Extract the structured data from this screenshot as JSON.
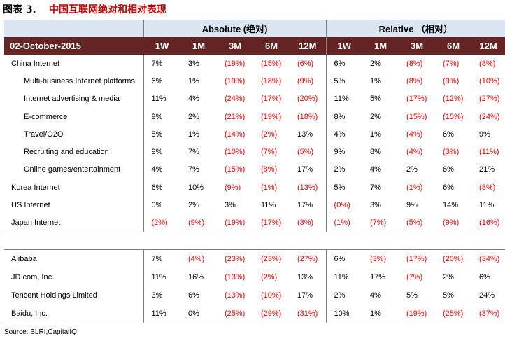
{
  "title": {
    "number": "图表 3.",
    "text": "中国互联网绝对和相对表现"
  },
  "header": {
    "absolute": "Absolute (绝对)",
    "relative": "Relative （相对）",
    "date": "02-October-2015",
    "periods": [
      "1W",
      "1M",
      "3M",
      "6M",
      "12M",
      "1W",
      "1M",
      "3M",
      "6M",
      "12M"
    ]
  },
  "rows": [
    {
      "label": "China Internet",
      "sub": false,
      "cells": [
        "7%",
        "3%",
        "(19%)",
        "(15%)",
        "(6%)",
        "6%",
        "2%",
        "(8%)",
        "(7%)",
        "(8%)"
      ]
    },
    {
      "label": "Multi-business Internet platforms",
      "sub": true,
      "cells": [
        "6%",
        "1%",
        "(19%)",
        "(18%)",
        "(9%)",
        "5%",
        "1%",
        "(8%)",
        "(9%)",
        "(10%)"
      ]
    },
    {
      "label": "Internet advertising & media",
      "sub": true,
      "cells": [
        "11%",
        "4%",
        "(24%)",
        "(17%)",
        "(20%)",
        "11%",
        "5%",
        "(17%)",
        "(12%)",
        "(27%)"
      ]
    },
    {
      "label": "E-commerce",
      "sub": true,
      "cells": [
        "9%",
        "2%",
        "(21%)",
        "(19%)",
        "(18%)",
        "8%",
        "2%",
        "(15%)",
        "(15%)",
        "(24%)"
      ]
    },
    {
      "label": "Travel/O2O",
      "sub": true,
      "cells": [
        "5%",
        "1%",
        "(14%)",
        "(2%)",
        "13%",
        "4%",
        "1%",
        "(4%)",
        "6%",
        "9%"
      ]
    },
    {
      "label": "Recruiting and education",
      "sub": true,
      "cells": [
        "9%",
        "7%",
        "(10%)",
        "(7%)",
        "(5%)",
        "9%",
        "8%",
        "(4%)",
        "(3%)",
        "(11%)"
      ]
    },
    {
      "label": "Online games/entertainment",
      "sub": true,
      "cells": [
        "4%",
        "7%",
        "(15%)",
        "(8%)",
        "17%",
        "2%",
        "4%",
        "2%",
        "6%",
        "21%"
      ]
    },
    {
      "label": "Korea Internet",
      "sub": false,
      "cells": [
        "6%",
        "10%",
        "(9%)",
        "(1%)",
        "(13%)",
        "5%",
        "7%",
        "(1%)",
        "6%",
        "(8%)"
      ]
    },
    {
      "label": "US Internet",
      "sub": false,
      "cells": [
        "0%",
        "2%",
        "3%",
        "11%",
        "17%",
        "(0%)",
        "3%",
        "9%",
        "14%",
        "11%"
      ]
    },
    {
      "label": "Japan Internet",
      "sub": false,
      "cells": [
        "(2%)",
        "(9%)",
        "(19%)",
        "(17%)",
        "(3%)",
        "(1%)",
        "(7%)",
        "(5%)",
        "(9%)",
        "(16%)"
      ]
    }
  ],
  "companies": [
    {
      "label": "Alibaba",
      "cells": [
        "7%",
        "(4%)",
        "(23%)",
        "(23%)",
        "(27%)",
        "6%",
        "(3%)",
        "(17%)",
        "(20%)",
        "(34%)"
      ]
    },
    {
      "label": "JD.com, Inc.",
      "cells": [
        "11%",
        "16%",
        "(13%)",
        "(2%)",
        "13%",
        "11%",
        "17%",
        "(7%)",
        "2%",
        "6%"
      ]
    },
    {
      "label": "Tencent Holdings Limited",
      "cells": [
        "3%",
        "6%",
        "(13%)",
        "(10%)",
        "17%",
        "2%",
        "4%",
        "5%",
        "5%",
        "24%"
      ]
    },
    {
      "label": "Baidu, Inc.",
      "cells": [
        "11%",
        "0%",
        "(25%)",
        "(29%)",
        "(31%)",
        "10%",
        "1%",
        "(19%)",
        "(25%)",
        "(37%)"
      ]
    }
  ],
  "source": "Source: BLRI,CapitalIQ",
  "colors": {
    "negative": "#ff0000",
    "header_band": "#dbe5f1",
    "date_band": "#632423",
    "title_text": "#c00000"
  }
}
